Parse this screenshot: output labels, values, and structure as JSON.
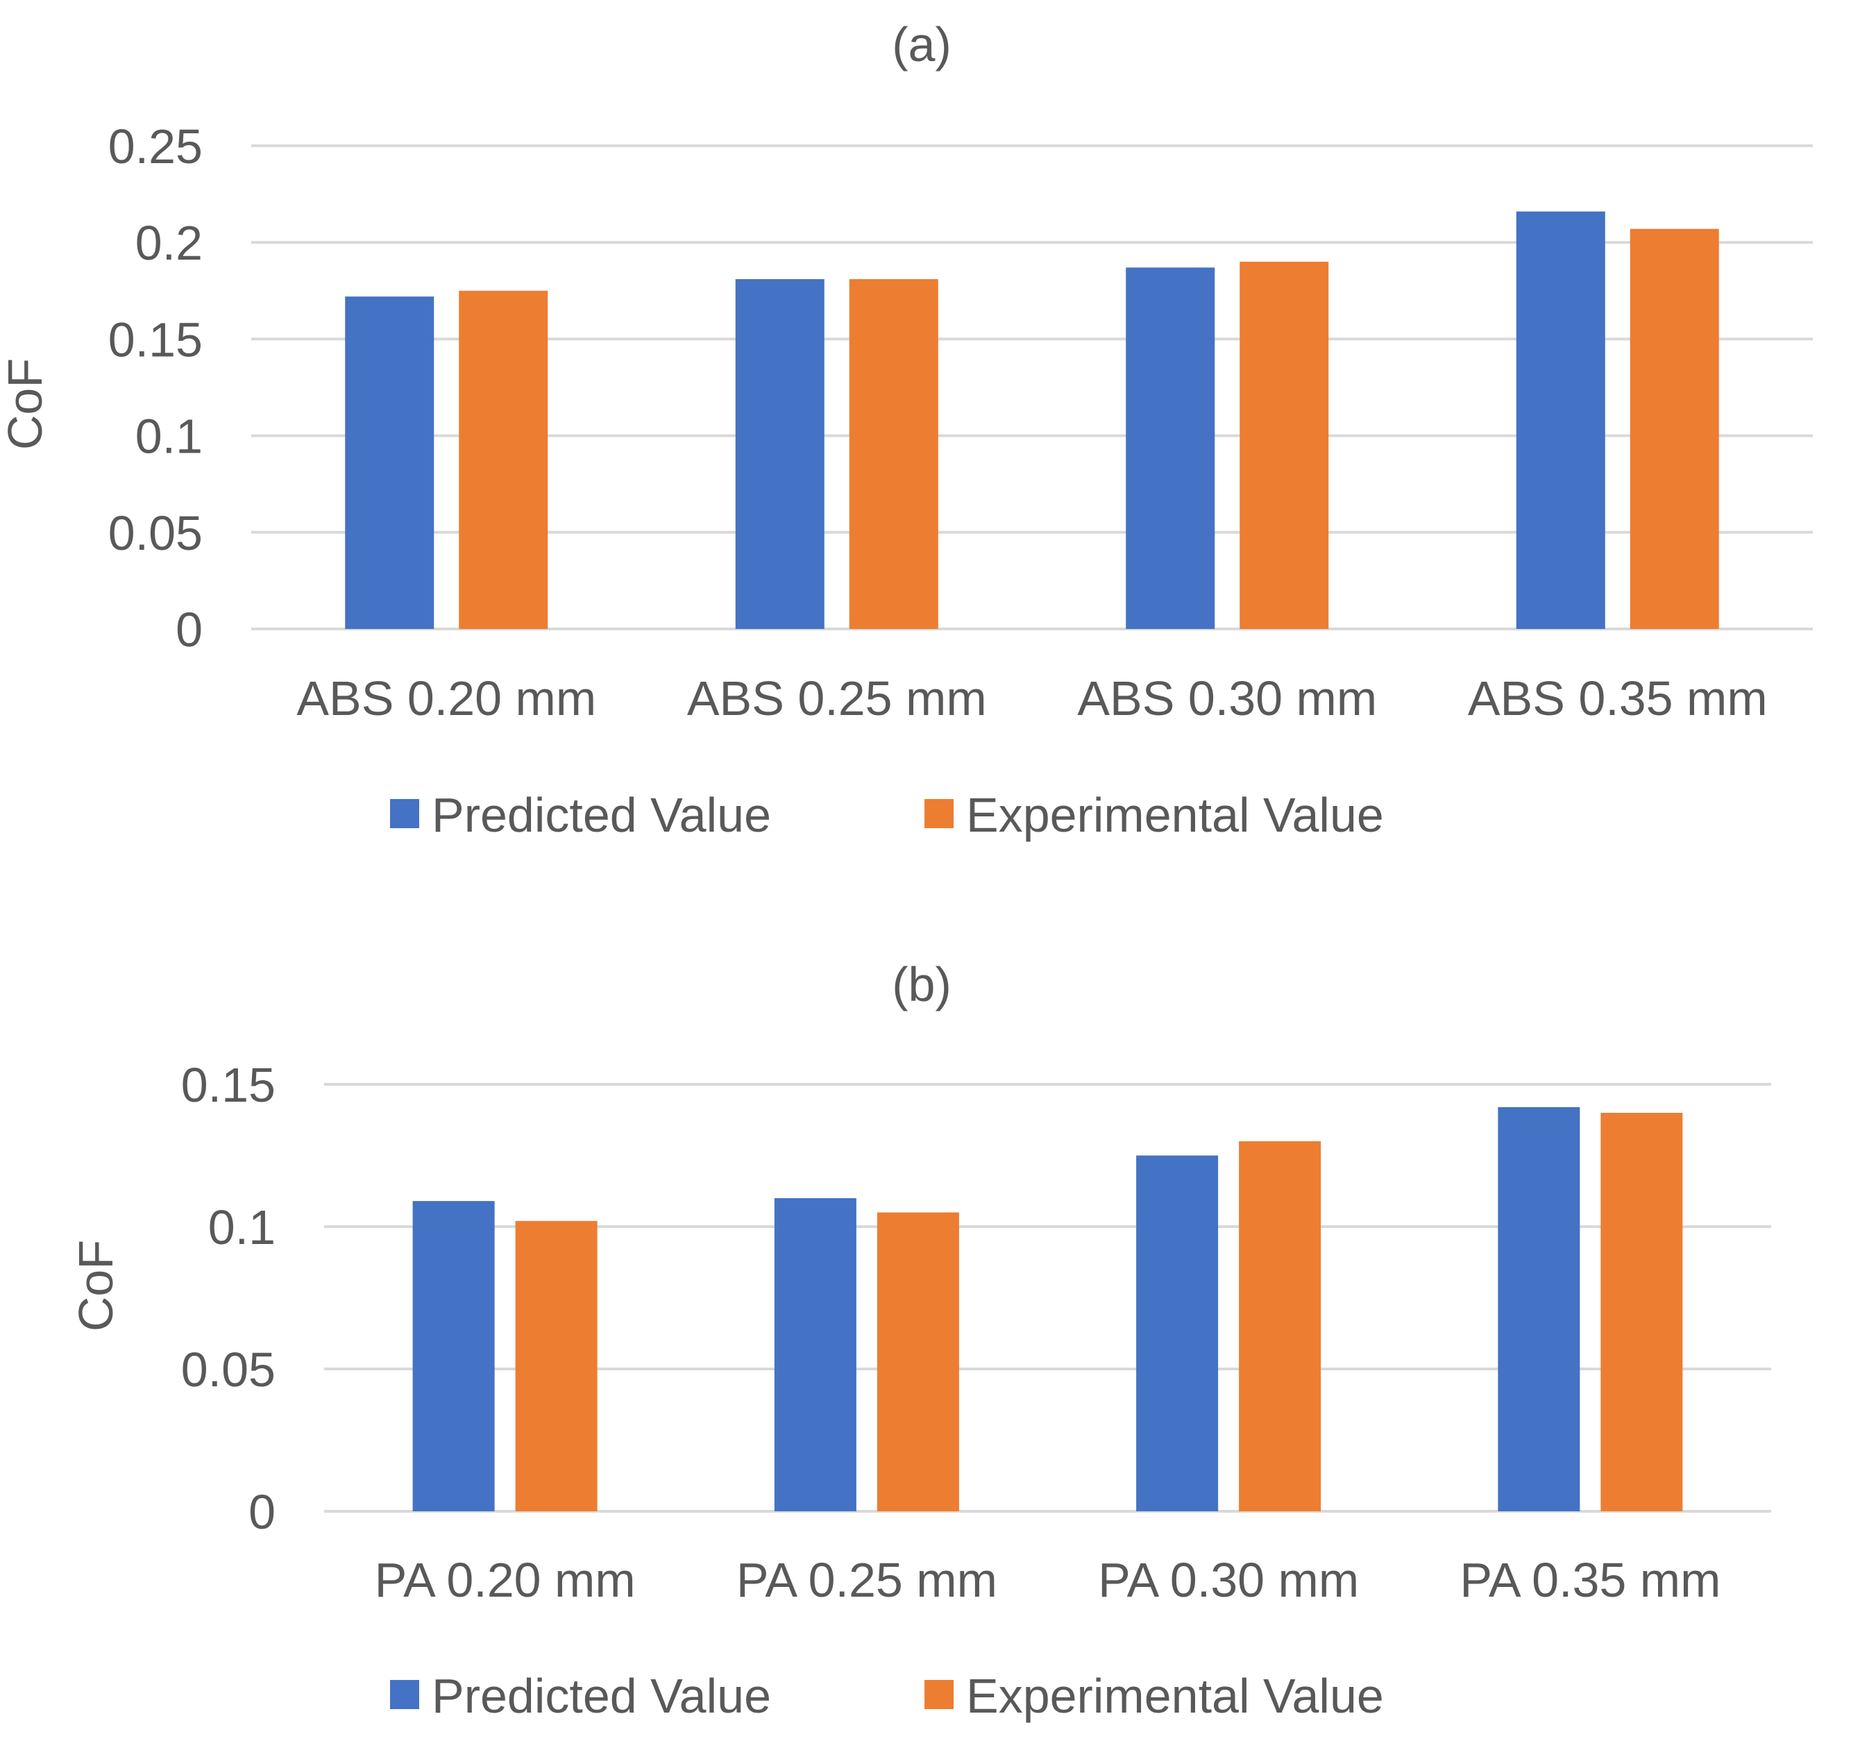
{
  "chart_data": [
    {
      "type": "bar",
      "title": "(a)",
      "xlabel": "",
      "ylabel": "CoF",
      "ylim": [
        0,
        0.25
      ],
      "yticks": [
        0,
        0.05,
        0.1,
        0.15,
        0.2,
        0.25
      ],
      "ytick_labels": [
        "0",
        "0.05",
        "0.1",
        "0.15",
        "0.2",
        "0.25"
      ],
      "categories": [
        "ABS 0.20 mm",
        "ABS 0.25 mm",
        "ABS 0.30 mm",
        "ABS 0.35 mm"
      ],
      "series": [
        {
          "name": "Predicted Value",
          "color": "#4472C4",
          "values": [
            0.172,
            0.181,
            0.187,
            0.216
          ]
        },
        {
          "name": "Experimental Value",
          "color": "#ED7D31",
          "values": [
            0.175,
            0.181,
            0.19,
            0.207
          ]
        }
      ],
      "grid": true,
      "legend": "bottom-center"
    },
    {
      "type": "bar",
      "title": "(b)",
      "xlabel": "",
      "ylabel": "CoF",
      "ylim": [
        0,
        0.15
      ],
      "yticks": [
        0,
        0.05,
        0.1,
        0.15
      ],
      "ytick_labels": [
        "0",
        "0.05",
        "0.1",
        "0.15"
      ],
      "categories": [
        "PA 0.20 mm",
        "PA 0.25 mm",
        "PA 0.30 mm",
        "PA 0.35 mm"
      ],
      "series": [
        {
          "name": "Predicted Value",
          "color": "#4472C4",
          "values": [
            0.109,
            0.11,
            0.125,
            0.142
          ]
        },
        {
          "name": "Experimental Value",
          "color": "#ED7D31",
          "values": [
            0.102,
            0.105,
            0.13,
            0.14
          ]
        }
      ],
      "grid": true,
      "legend": "bottom-center"
    }
  ]
}
